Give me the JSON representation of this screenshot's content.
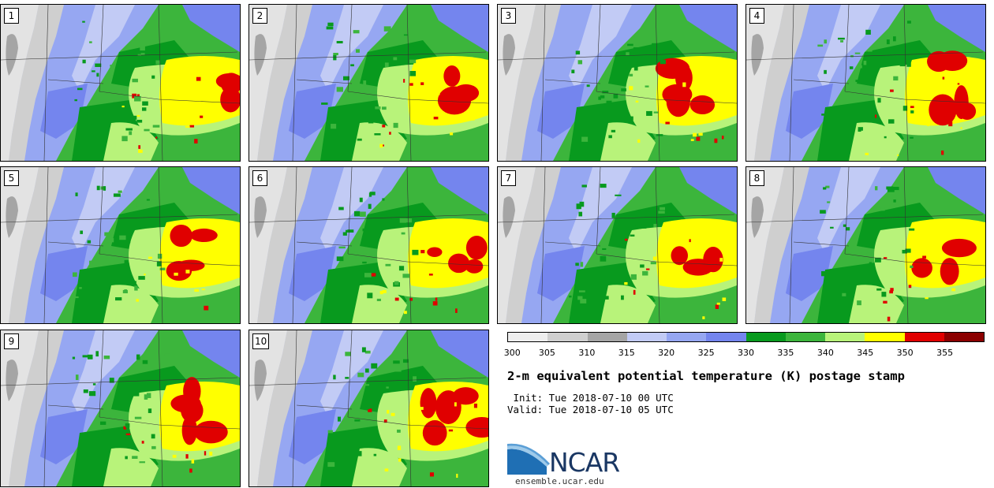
{
  "panels": [
    {
      "label": "1"
    },
    {
      "label": "2"
    },
    {
      "label": "3"
    },
    {
      "label": "4"
    },
    {
      "label": "5"
    },
    {
      "label": "6"
    },
    {
      "label": "7"
    },
    {
      "label": "8"
    },
    {
      "label": "9"
    },
    {
      "label": "10"
    }
  ],
  "legend": {
    "ticks": [
      "300",
      "305",
      "310",
      "315",
      "320",
      "325",
      "330",
      "335",
      "340",
      "345",
      "350",
      "355"
    ],
    "colors": [
      "#eeeeee",
      "#cfcfcf",
      "#a5a5a5",
      "#c2cbf5",
      "#96a7f2",
      "#7485ee",
      "#089a1e",
      "#3cb53c",
      "#b8f37a",
      "#ffff00",
      "#e00000",
      "#8b0000"
    ]
  },
  "title": "2-m equivalent potential temperature (K) postage stamp",
  "init": " Init: Tue 2018-07-10 00 UTC",
  "valid": "Valid: Tue 2018-07-10 05 UTC",
  "logo": {
    "text": "NCAR",
    "url": "ensemble.ucar.edu"
  }
}
